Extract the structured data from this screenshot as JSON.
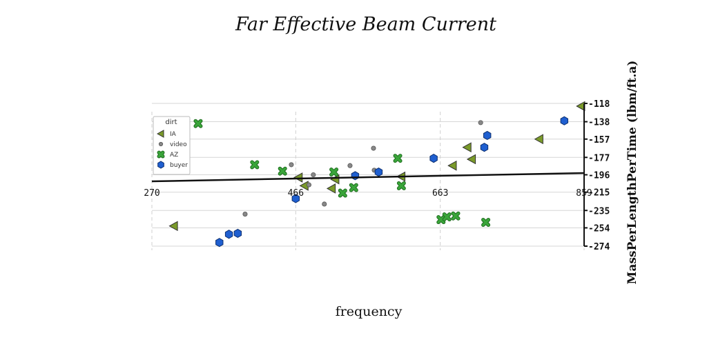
{
  "chart_data": {
    "type": "scatter",
    "title": "Far Effective Beam Current",
    "xlabel": "frequency",
    "ylabel": "MassPerLengthPerTime (lbm/ft.a)",
    "xlim": [
      270,
      859
    ],
    "ylim": [
      -274,
      -118
    ],
    "xticks": [
      270,
      466,
      663,
      859
    ],
    "xtick_labels": [
      "270",
      "466",
      "663",
      "859"
    ],
    "yticks": [
      -118,
      -138,
      -157,
      -177,
      -196,
      -215,
      -235,
      -254,
      -274
    ],
    "ytick_labels": [
      "-118",
      "-138",
      "-157",
      "-177",
      "-196",
      "-215",
      "-235",
      "-254",
      "-274"
    ],
    "grid": true,
    "legend": {
      "title": "dirt",
      "position": "upper-left"
    },
    "series": [
      {
        "name": "IA",
        "marker": "triangle-left",
        "color": "#7a9a2a",
        "points": [
          [
            300,
            -252
          ],
          [
            470,
            -199
          ],
          [
            478,
            -208
          ],
          [
            520,
            -201
          ],
          [
            515,
            -211
          ],
          [
            610,
            -198
          ],
          [
            680,
            -186
          ],
          [
            700,
            -166
          ],
          [
            706,
            -179
          ],
          [
            798,
            -157
          ],
          [
            855,
            -121
          ]
        ]
      },
      {
        "name": "video",
        "marker": "circle",
        "color": "#888888",
        "points": [
          [
            397,
            -239
          ],
          [
            460,
            -185
          ],
          [
            484,
            -207
          ],
          [
            490,
            -196
          ],
          [
            505,
            -228
          ],
          [
            540,
            -186
          ],
          [
            572,
            -167
          ],
          [
            573,
            -191
          ],
          [
            718,
            -139
          ]
        ]
      },
      {
        "name": "AZ",
        "marker": "x",
        "color": "#3aa53a",
        "points": [
          [
            333,
            -140
          ],
          [
            410,
            -185
          ],
          [
            448,
            -192
          ],
          [
            518,
            -193
          ],
          [
            530,
            -216
          ],
          [
            545,
            -210
          ],
          [
            605,
            -178
          ],
          [
            610,
            -208
          ],
          [
            664,
            -245
          ],
          [
            672,
            -242
          ],
          [
            684,
            -241
          ],
          [
            725,
            -248
          ]
        ]
      },
      {
        "name": "buyer",
        "marker": "hexagon",
        "color": "#1f5fd0",
        "points": [
          [
            362,
            -270
          ],
          [
            375,
            -261
          ],
          [
            387,
            -260
          ],
          [
            466,
            -222
          ],
          [
            547,
            -197
          ],
          [
            579,
            -193
          ],
          [
            654,
            -178
          ],
          [
            723,
            -166
          ],
          [
            727,
            -153
          ],
          [
            832,
            -137
          ]
        ]
      }
    ]
  }
}
